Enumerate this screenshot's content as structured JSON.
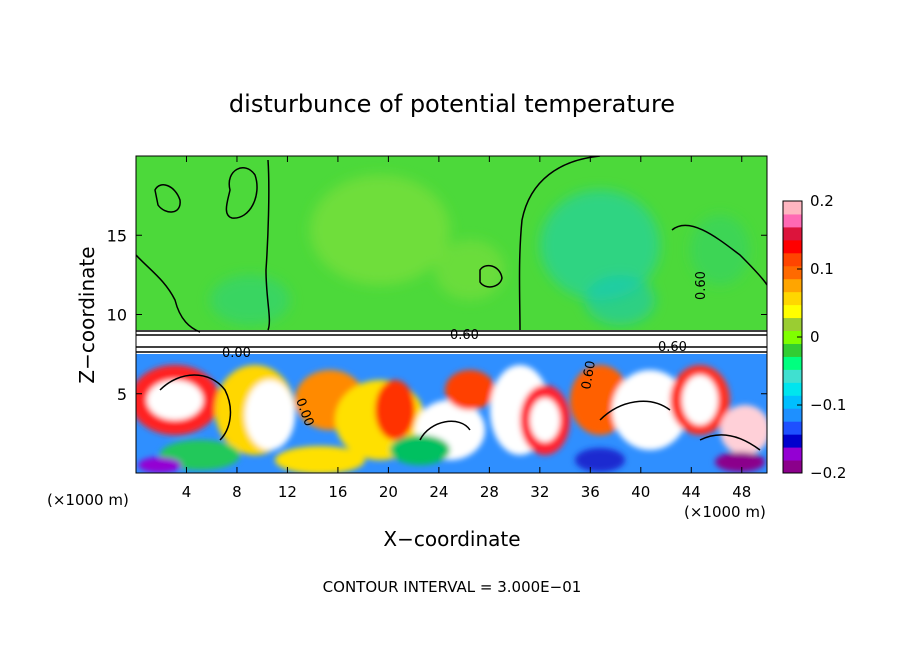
{
  "chart_data": {
    "type": "heatmap",
    "title": "disturbunce of potential temperature",
    "xlabel": "X−coordinate",
    "ylabel": "Z−coordinate",
    "x_unit": "(×1000 m)",
    "x_unit_right": "(×1000 m)",
    "xlim": [
      0,
      50
    ],
    "ylim": [
      0,
      20
    ],
    "x_ticks": [
      4,
      8,
      12,
      16,
      20,
      24,
      28,
      32,
      36,
      40,
      44,
      48
    ],
    "x_tick_labels": [
      "4",
      "8",
      "12",
      "16",
      "20",
      "24",
      "28",
      "32",
      "36",
      "40",
      "44",
      "48"
    ],
    "y_ticks": [
      5,
      10,
      15
    ],
    "y_tick_labels": [
      "5",
      "10",
      "15"
    ],
    "colorbar": {
      "min": -0.2,
      "max": 0.2,
      "ticks": [
        0.2,
        0.1,
        0,
        -0.1,
        -0.2
      ],
      "tick_labels": [
        "0.2",
        "0.1",
        "0",
        "−0.1",
        "−0.2"
      ],
      "colors": [
        "#8b008b",
        "#9400d3",
        "#0000cd",
        "#1e50ff",
        "#1e90ff",
        "#00bfff",
        "#00e5ee",
        "#40e0d0",
        "#00ff7f",
        "#32cd32",
        "#7fff00",
        "#9acd32",
        "#ffff00",
        "#ffd700",
        "#ffa500",
        "#ff6a00",
        "#ff4500",
        "#ff0000",
        "#dc143c",
        "#ff69b4",
        "#ffb6c1"
      ]
    },
    "contour_labels": [
      "0.60",
      "0.60",
      "0.60",
      "0.60",
      "0.00",
      "0.00"
    ],
    "contour_interval_text": "CONTOUR INTERVAL = 3.000E−01",
    "grid": false
  }
}
